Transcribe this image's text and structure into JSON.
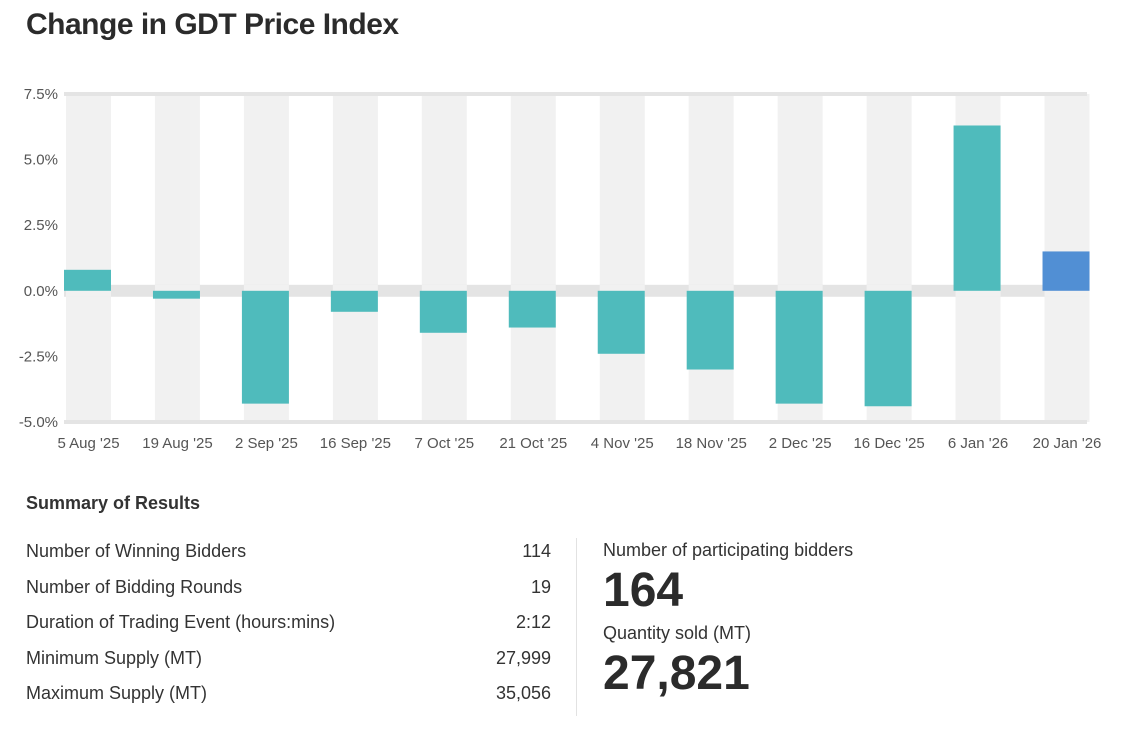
{
  "title": "Change in GDT Price Index",
  "chart_data": {
    "type": "bar",
    "title": "Change in GDT Price Index",
    "categories": [
      "5 Aug '25",
      "19 Aug '25",
      "2 Sep '25",
      "16 Sep '25",
      "7 Oct '25",
      "21 Oct '25",
      "4 Nov '25",
      "18 Nov '25",
      "2 Dec '25",
      "16 Dec '25",
      "6 Jan '26",
      "20 Jan '26"
    ],
    "values": [
      0.8,
      -0.3,
      -4.3,
      -0.8,
      -1.6,
      -1.4,
      -2.4,
      -3.0,
      -4.3,
      -4.4,
      6.3,
      1.5
    ],
    "ylim": [
      -5,
      7.5
    ],
    "yticks": [
      "7.5%",
      "5.0%",
      "2.5%",
      "0.0%",
      "-2.5%",
      "-5.0%"
    ],
    "ytick_values": [
      7.5,
      5,
      2.5,
      0,
      -2.5,
      -5
    ],
    "colors": {
      "bar": "#4fbbbc",
      "latest": "#518fd4",
      "stripe": "#f1f1f1",
      "zero_band": "#e4e4e4"
    },
    "grid": false,
    "xlabel": "",
    "ylabel": ""
  },
  "summary": {
    "title": "Summary of Results",
    "rows": [
      {
        "label": "Number of Winning Bidders",
        "value": "114"
      },
      {
        "label": "Number of Bidding Rounds",
        "value": "19"
      },
      {
        "label": "Duration of Trading Event (hours:mins)",
        "value": "2:12"
      },
      {
        "label": "Minimum Supply (MT)",
        "value": "27,999"
      },
      {
        "label": "Maximum Supply (MT)",
        "value": "35,056"
      }
    ],
    "participating_label": "Number of participating bidders",
    "participating_value": "164",
    "quantity_label": "Quantity sold (MT)",
    "quantity_value": "27,821"
  }
}
